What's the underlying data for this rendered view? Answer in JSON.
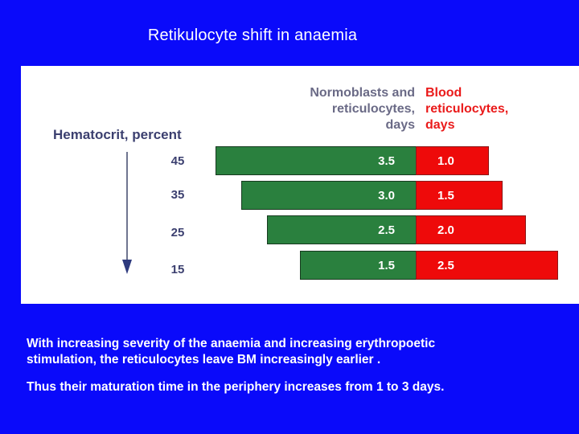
{
  "slide": {
    "title": "Retikulocyte shift in anaemia"
  },
  "figure": {
    "header_left": "Normoblasts and\nreticulocytes,\ndays",
    "header_right": "Blood\nreticulocytes,\ndays",
    "hematocrit_label": "Hematocrit, percent",
    "colors": {
      "marrow": "#2a803e",
      "blood": "#ee0a0a"
    },
    "rows": [
      {
        "hematocrit": "45",
        "marrow_days": "3.5",
        "blood_days": "1.0"
      },
      {
        "hematocrit": "35",
        "marrow_days": "3.0",
        "blood_days": "1.5"
      },
      {
        "hematocrit": "25",
        "marrow_days": "2.5",
        "blood_days": "2.0"
      },
      {
        "hematocrit": "15",
        "marrow_days": "1.5",
        "blood_days": "2.5"
      }
    ]
  },
  "caption": {
    "line1": "With increasing severity of the anaemia and increasing erythropoetic\nstimulation, the reticulocytes leave BM increasingly earlier .",
    "line2": "Thus their maturation time in the periphery  increases from 1 to 3 days."
  }
}
